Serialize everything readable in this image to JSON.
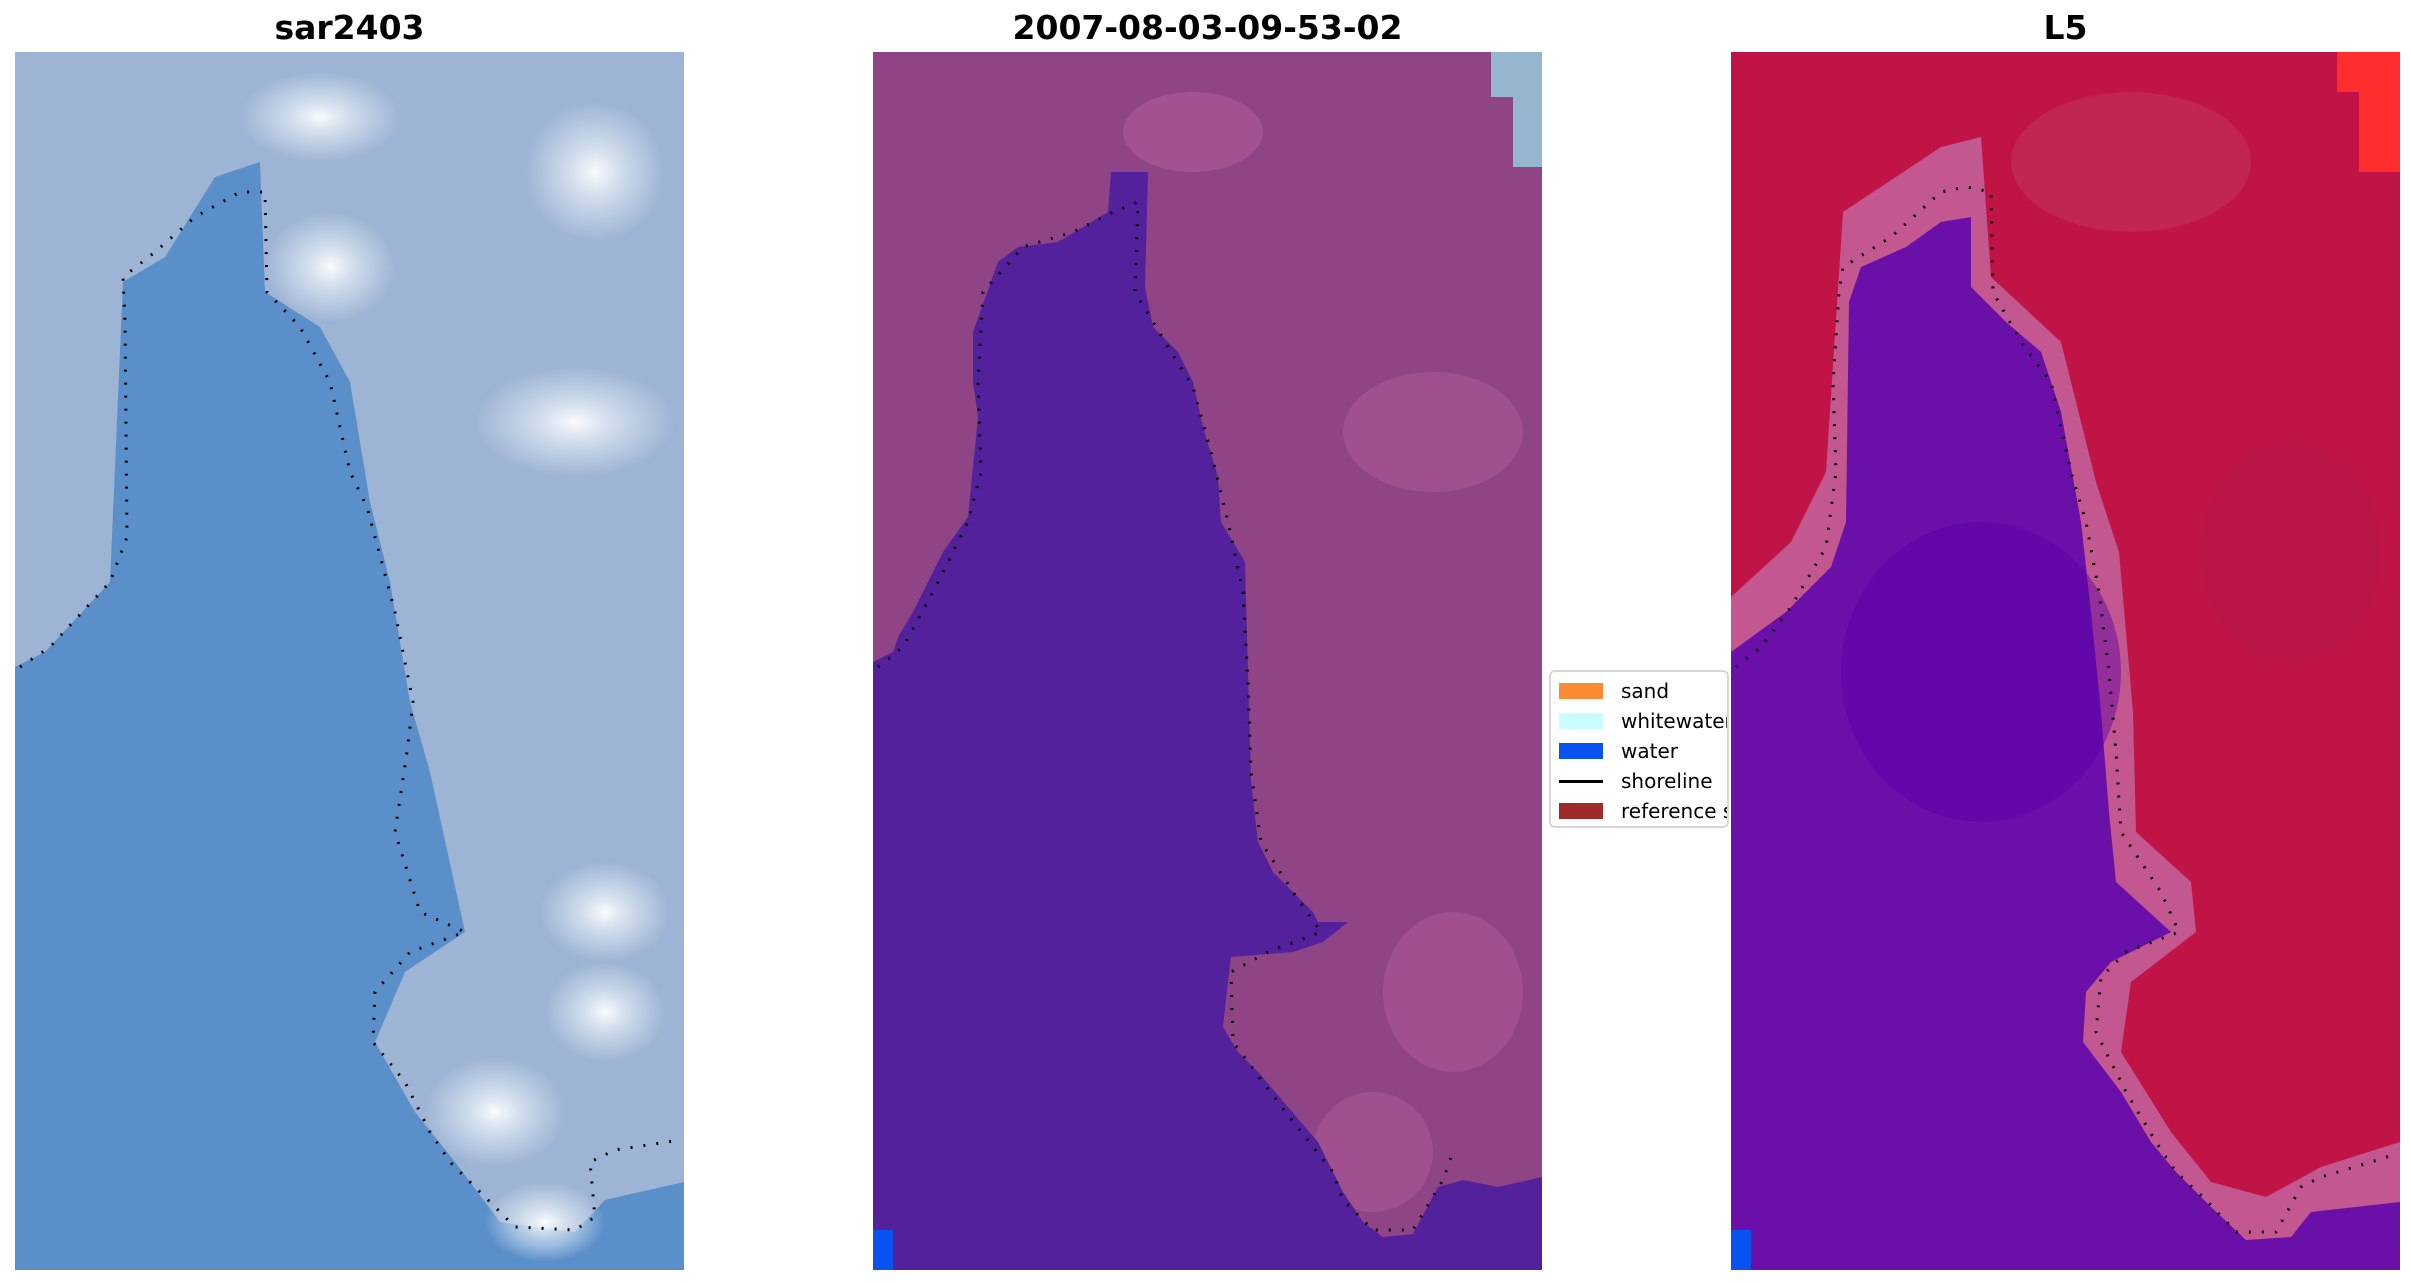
{
  "panels": [
    {
      "title": "sar2403"
    },
    {
      "title": "2007-08-03-09-53-02"
    },
    {
      "title": "L5"
    }
  ],
  "legend": {
    "items": [
      {
        "label": "sand",
        "color": "#fb8a35"
      },
      {
        "label": "whitewater",
        "color": "#c9fdff"
      },
      {
        "label": "water",
        "color": "#0a52f0"
      },
      {
        "label": "shoreline",
        "color": "#000000"
      },
      {
        "label": "reference s",
        "color": "#9e2a2a"
      }
    ]
  },
  "colors": {
    "rgb_water": "#5b8fca",
    "rgb_land": "#9fb6d6",
    "class_water": "#54219c",
    "class_land": "#8f4486",
    "index_water": "#6a10a8",
    "index_land": "#c01446"
  }
}
